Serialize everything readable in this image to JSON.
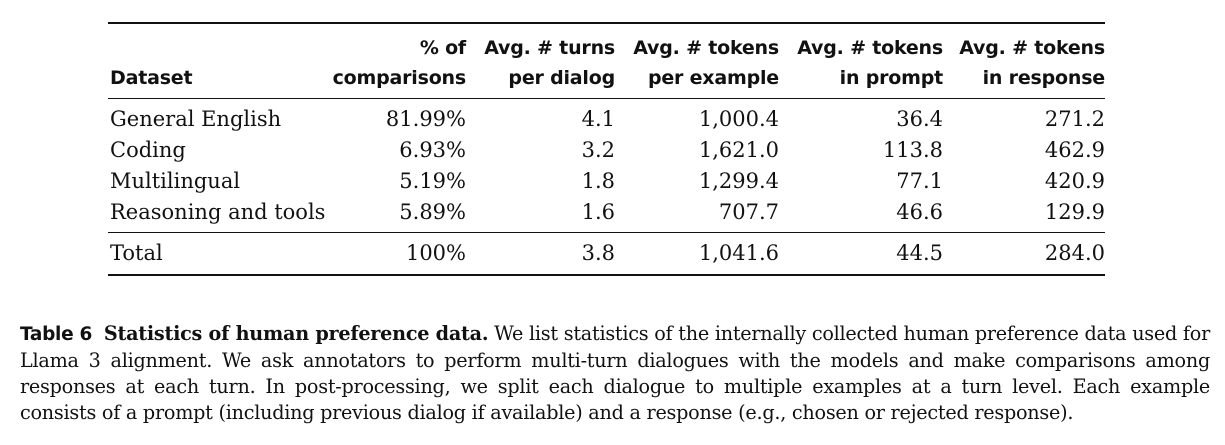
{
  "table": {
    "header_row1": [
      "",
      "% of",
      "Avg. # turns",
      "Avg. # tokens",
      "Avg. # tokens",
      "Avg. # tokens"
    ],
    "header_row2": [
      "Dataset",
      "comparisons",
      "per dialog",
      "per example",
      "in prompt",
      "in response"
    ],
    "rows": [
      [
        "General English",
        "81.99%",
        "4.1",
        "1,000.4",
        "36.4",
        "271.2"
      ],
      [
        "Coding",
        "6.93%",
        "3.2",
        "1,621.0",
        "113.8",
        "462.9"
      ],
      [
        "Multilingual",
        "5.19%",
        "1.8",
        "1,299.4",
        "77.1",
        "420.9"
      ],
      [
        "Reasoning and tools",
        "5.89%",
        "1.6",
        "707.7",
        "46.6",
        "129.9"
      ]
    ],
    "total": [
      "Total",
      "100%",
      "3.8",
      "1,041.6",
      "44.5",
      "284.0"
    ]
  },
  "caption": {
    "label": "Table 6",
    "title": "Statistics of human preference data.",
    "text": "We list statistics of the internally collected human preference data used for Llama 3 alignment. We ask annotators to perform multi-turn dialogues with the models and make comparisons among responses at each turn. In post-processing, we split each dialogue to multiple examples at a turn level. Each example consists of a prompt (including previous dialog if available) and a response (e.g., chosen or rejected response)."
  }
}
